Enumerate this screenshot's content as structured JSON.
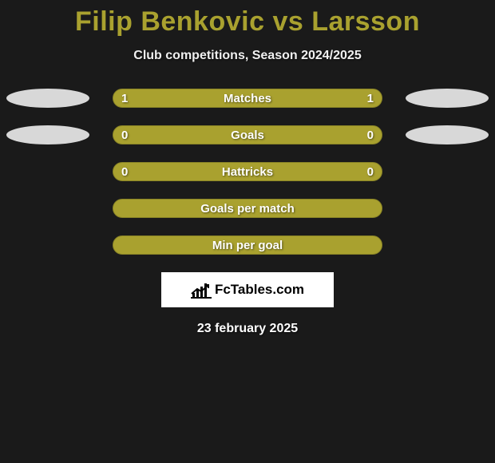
{
  "title": "Filip Benkovic vs Larsson",
  "subtitle": "Club competitions, Season 2024/2025",
  "colors": {
    "background": "#1a1a1a",
    "accent": "#a9a12f",
    "bar_border": "#8a8426",
    "ellipse": "#d8d8d8",
    "text_light": "#ffffff",
    "logo_bg": "#ffffff",
    "logo_fg": "#000000"
  },
  "rows": [
    {
      "label": "Matches",
      "left": "1",
      "right": "1",
      "show_values": true,
      "left_ellipse": true,
      "right_ellipse": true
    },
    {
      "label": "Goals",
      "left": "0",
      "right": "0",
      "show_values": true,
      "left_ellipse": true,
      "right_ellipse": true
    },
    {
      "label": "Hattricks",
      "left": "0",
      "right": "0",
      "show_values": true,
      "left_ellipse": false,
      "right_ellipse": false
    },
    {
      "label": "Goals per match",
      "left": "",
      "right": "",
      "show_values": false,
      "left_ellipse": false,
      "right_ellipse": false
    },
    {
      "label": "Min per goal",
      "left": "",
      "right": "",
      "show_values": false,
      "left_ellipse": false,
      "right_ellipse": false
    }
  ],
  "logo_text": "FcTables.com",
  "date": "23 february 2025"
}
